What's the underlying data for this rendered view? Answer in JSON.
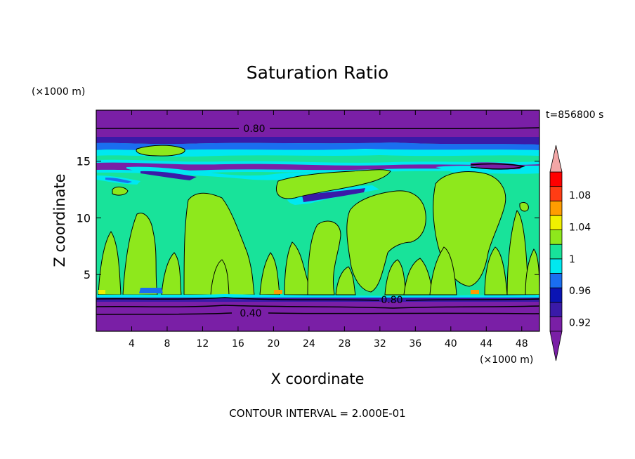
{
  "chart_data": {
    "type": "heatmap",
    "title": "Saturation Ratio",
    "xlabel": "X coordinate",
    "ylabel": "Z coordinate",
    "x_unit": "(×1000 m)",
    "y_unit": "(×1000 m)",
    "time_label": "t=856800 s",
    "footer": "CONTOUR INTERVAL = 2.000E-01",
    "xlim": [
      0,
      50
    ],
    "ylim": [
      0,
      19.5
    ],
    "x_ticks": [
      4,
      8,
      12,
      16,
      20,
      24,
      28,
      32,
      36,
      40,
      44,
      48
    ],
    "y_ticks": [
      5,
      10,
      15
    ],
    "contour_labels": [
      "0.80",
      "0.80",
      "0.40"
    ],
    "colorbar": {
      "levels": [
        0.9,
        0.92,
        0.94,
        0.96,
        0.98,
        1.0,
        1.02,
        1.04,
        1.06,
        1.08,
        1.1
      ],
      "tick_labels": [
        "0.92",
        "0.96",
        "1",
        "1.04",
        "1.08"
      ],
      "colors": [
        "#7a1fa6",
        "#3a1aa8",
        "#0a14b4",
        "#1a6ef0",
        "#00e8f0",
        "#18e39a",
        "#8ee81c",
        "#f0f000",
        "#ff9c00",
        "#ff3c14",
        "#ff0000"
      ],
      "under_color": "#7a1fa6",
      "over_color": "#f2a6a6"
    }
  }
}
